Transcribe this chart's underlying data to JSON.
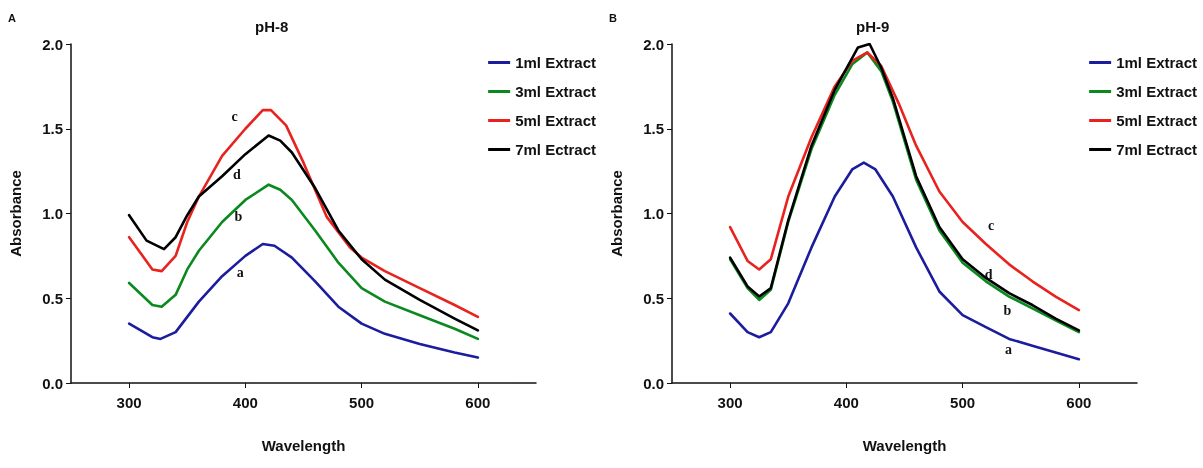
{
  "chart_data": [
    {
      "type": "line",
      "title": "pH-8",
      "xlabel": "Wavelength",
      "ylabel": "Absorbance",
      "xlim": [
        250,
        650
      ],
      "xticks": [
        300,
        400,
        500,
        600
      ],
      "ylim": [
        0,
        2
      ],
      "yticks": [
        {
          "value": 0,
          "label": "0.0"
        },
        {
          "value": 0.5,
          "label": "0.5"
        },
        {
          "value": 1,
          "label": "1.0"
        },
        {
          "value": 1.5,
          "label": "1.5"
        },
        {
          "value": 2,
          "label": "2.0"
        }
      ],
      "grid": false,
      "legend": "top right",
      "marker": "none",
      "line_style": "solid",
      "annotations": [
        "A",
        "c",
        "d",
        "b",
        "a"
      ],
      "series": [
        {
          "name": "1ml Extract",
          "color": "#1c1c9e",
          "x": [
            300,
            320,
            327,
            340,
            350,
            360,
            380,
            400,
            415,
            425,
            440,
            460,
            480,
            500,
            520,
            550,
            580,
            600
          ],
          "values": [
            0.35,
            0.27,
            0.26,
            0.3,
            0.39,
            0.48,
            0.63,
            0.75,
            0.82,
            0.81,
            0.74,
            0.6,
            0.45,
            0.35,
            0.29,
            0.23,
            0.18,
            0.15
          ]
        },
        {
          "name": "3ml Extract",
          "color": "#0a8a1e",
          "x": [
            300,
            320,
            328,
            340,
            350,
            360,
            380,
            400,
            420,
            430,
            440,
            460,
            480,
            500,
            520,
            550,
            580,
            600
          ],
          "values": [
            0.59,
            0.46,
            0.45,
            0.52,
            0.67,
            0.78,
            0.95,
            1.08,
            1.17,
            1.14,
            1.08,
            0.9,
            0.71,
            0.56,
            0.48,
            0.4,
            0.32,
            0.26
          ]
        },
        {
          "name": "5ml Extract",
          "color": "#e8231f",
          "x": [
            300,
            320,
            328,
            340,
            350,
            360,
            380,
            400,
            415,
            422,
            435,
            450,
            470,
            490,
            500,
            520,
            550,
            580,
            600
          ],
          "values": [
            0.86,
            0.67,
            0.66,
            0.75,
            0.95,
            1.1,
            1.34,
            1.5,
            1.61,
            1.61,
            1.52,
            1.3,
            0.98,
            0.8,
            0.74,
            0.66,
            0.56,
            0.46,
            0.39
          ]
        },
        {
          "name": "7ml Ectract",
          "color": "#000000",
          "x": [
            300,
            315,
            330,
            340,
            350,
            360,
            380,
            400,
            420,
            430,
            440,
            460,
            480,
            500,
            520,
            550,
            580,
            600
          ],
          "values": [
            0.99,
            0.84,
            0.79,
            0.86,
            0.99,
            1.1,
            1.22,
            1.35,
            1.46,
            1.43,
            1.36,
            1.15,
            0.9,
            0.73,
            0.61,
            0.49,
            0.38,
            0.31
          ]
        }
      ]
    },
    {
      "type": "line",
      "title": "pH-9",
      "xlabel": "Wavelength",
      "ylabel": "Absorbance",
      "xlim": [
        250,
        650
      ],
      "xticks": [
        300,
        400,
        500,
        600
      ],
      "ylim": [
        0,
        2
      ],
      "yticks": [
        {
          "value": 0,
          "label": "0.0"
        },
        {
          "value": 0.5,
          "label": "0.5"
        },
        {
          "value": 1,
          "label": "1.0"
        },
        {
          "value": 1.5,
          "label": "1.5"
        },
        {
          "value": 2,
          "label": "2.0"
        }
      ],
      "grid": false,
      "legend": "top right",
      "marker": "none",
      "line_style": "solid",
      "annotations": [
        "B",
        "c",
        "d",
        "b",
        "a"
      ],
      "series": [
        {
          "name": "1ml Extract",
          "color": "#1c1c9e",
          "x": [
            300,
            315,
            325,
            335,
            350,
            370,
            390,
            405,
            415,
            425,
            440,
            460,
            480,
            500,
            520,
            540,
            560,
            580,
            600
          ],
          "values": [
            0.41,
            0.3,
            0.27,
            0.3,
            0.47,
            0.8,
            1.1,
            1.26,
            1.3,
            1.26,
            1.1,
            0.8,
            0.54,
            0.4,
            0.33,
            0.26,
            0.22,
            0.18,
            0.14
          ]
        },
        {
          "name": "3ml Extract",
          "color": "#0a8a1e",
          "x": [
            300,
            315,
            325,
            335,
            350,
            370,
            390,
            405,
            418,
            430,
            440,
            460,
            480,
            500,
            520,
            540,
            560,
            580,
            600
          ],
          "values": [
            0.73,
            0.56,
            0.49,
            0.55,
            0.95,
            1.38,
            1.7,
            1.88,
            1.95,
            1.84,
            1.66,
            1.2,
            0.9,
            0.71,
            0.6,
            0.51,
            0.44,
            0.37,
            0.3
          ]
        },
        {
          "name": "5ml Extract",
          "color": "#e8231f",
          "x": [
            300,
            315,
            325,
            335,
            350,
            370,
            390,
            405,
            418,
            430,
            445,
            460,
            480,
            500,
            520,
            540,
            560,
            580,
            600
          ],
          "values": [
            0.92,
            0.72,
            0.67,
            0.73,
            1.1,
            1.45,
            1.75,
            1.9,
            1.95,
            1.87,
            1.65,
            1.4,
            1.13,
            0.95,
            0.82,
            0.7,
            0.6,
            0.51,
            0.43
          ]
        },
        {
          "name": "7ml Ectract",
          "color": "#000000",
          "x": [
            300,
            315,
            325,
            335,
            350,
            370,
            390,
            410,
            420,
            430,
            440,
            460,
            480,
            500,
            520,
            540,
            560,
            580,
            600
          ],
          "values": [
            0.74,
            0.57,
            0.51,
            0.56,
            0.96,
            1.4,
            1.73,
            1.98,
            2.0,
            1.86,
            1.68,
            1.22,
            0.92,
            0.73,
            0.62,
            0.53,
            0.46,
            0.38,
            0.31
          ]
        }
      ]
    }
  ]
}
